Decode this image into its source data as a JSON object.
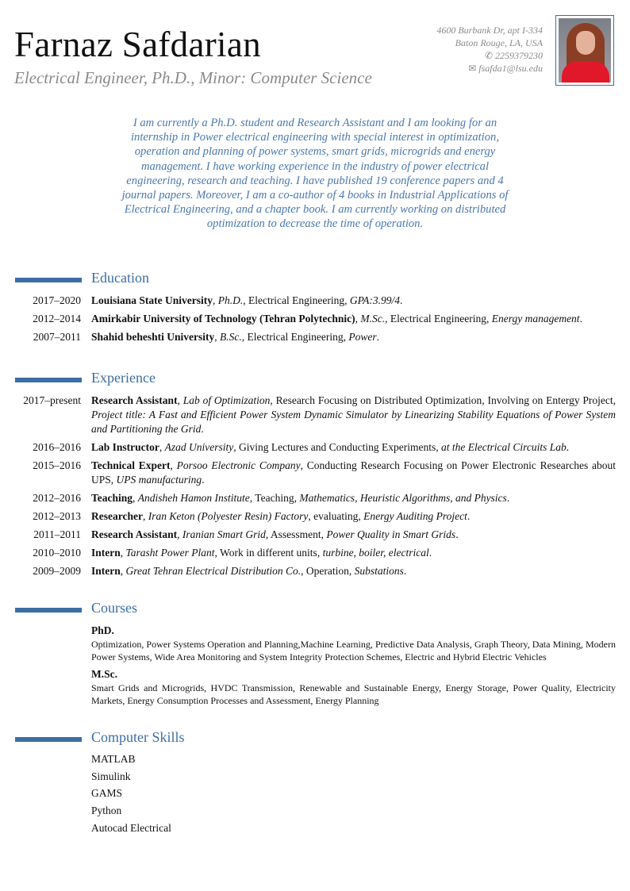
{
  "header": {
    "name": "Farnaz Safdarian",
    "title": "Electrical Engineer, Ph.D., Minor: Computer Science",
    "address_line1": "4600 Burbank Dr, apt I-334",
    "address_line2": "Baton Rouge, LA, USA",
    "phone": "2259379230",
    "email": "fsafda1@lsu.edu",
    "phone_icon": "mobile-phone-icon",
    "email_icon": "envelope-icon"
  },
  "quote": "I am currently a Ph.D. student and Research Assistant and I am looking for an internship in Power electrical engineering with special interest in optimization, operation and planning of power systems, smart grids, microgrids and energy management. I have working experience in the industry of power electrical engineering, research and teaching. I have published 19 conference papers and 4 journal papers. Moreover, I am a co-author of 4 books in Industrial Applications of Electrical Engineering, and a chapter book. I am currently working on distributed optimization to decrease the time of operation.",
  "colors": {
    "accent": "#3c6ea5",
    "quote": "#4a78b0",
    "muted": "#8a8a8a"
  },
  "education": {
    "heading": "Education",
    "entries": [
      {
        "date": "2017–2020",
        "title": "Louisiana State University",
        "org": "Ph.D.",
        "detail": "Electrical Engineering",
        "note": "GPA:3.99/4"
      },
      {
        "date": "2012–2014",
        "title": "Amirkabir University of Technology (Tehran Polytechnic)",
        "org": "M.Sc.",
        "detail": "Electrical Engineering",
        "note": "Energy management"
      },
      {
        "date": "2007–2011",
        "title": "Shahid beheshti University",
        "org": "B.Sc.",
        "detail": "Electrical Engineering",
        "note": "Power"
      }
    ]
  },
  "experience": {
    "heading": "Experience",
    "entries": [
      {
        "date": "2017–present",
        "title": "Research Assistant",
        "org": "Lab of Optimization",
        "detail": "Research Focusing on Distributed Optimization, Involving on Entergy Project",
        "note": "Project title: A Fast and Efficient Power System Dynamic Simulator by Linearizing Stability Equations of Power System and Partitioning the Grid"
      },
      {
        "date": "2016–2016",
        "title": "Lab Instructor",
        "org": "Azad University",
        "detail": "Giving Lectures and Conducting Experiments",
        "note": "at the Electrical Circuits Lab"
      },
      {
        "date": "2015–2016",
        "title": "Technical Expert",
        "org": "Porsoo Electronic Company",
        "detail": "Conducting Research Focusing on Power Electronic Researches about UPS",
        "note": "UPS manufacturing"
      },
      {
        "date": "2012–2016",
        "title": "Teaching",
        "org": "Andisheh Hamon Institute",
        "detail": "Teaching",
        "note": " Mathematics, Heuristic Algorithms, and Physics"
      },
      {
        "date": "2012–2013",
        "title": "Researcher",
        "org": "Iran Keton (Polyester Resin) Factory",
        "detail": "evaluating",
        "note": "Energy Auditing Project"
      },
      {
        "date": "2011–2011",
        "title": "Research Assistant",
        "org": "Iranian Smart Grid",
        "detail": "Assessment",
        "note": "Power Quality in Smart Grids"
      },
      {
        "date": "2010–2010",
        "title": "Intern",
        "org": "Tarasht Power Plant",
        "detail": "Work in different units",
        "note": "turbine, boiler, electrical"
      },
      {
        "date": "2009–2009",
        "title": "Intern",
        "org": "Great Tehran Electrical Distribution Co.",
        "detail": "Operation",
        "note": "Substations"
      }
    ]
  },
  "courses": {
    "heading": "Courses",
    "groups": [
      {
        "title": "PhD",
        "text": "Optimization, Power Systems Operation and Planning,Machine Learning, Predictive Data Analysis, Graph Theory, Data Mining, Modern Power Systems, Wide Area Monitoring and System Integrity Protection Schemes, Electric and Hybrid Electric Vehicles"
      },
      {
        "title": "M.Sc",
        "text": "Smart Grids and Microgrids, HVDC Transmission, Renewable and Sustainable Energy, Energy Storage, Power Quality, Electricity Markets, Energy Consumption Processes and Assessment, Energy Planning"
      }
    ]
  },
  "skills": {
    "heading": "Computer Skills",
    "items": [
      "MATLAB",
      "Simulink",
      "GAMS",
      "Python",
      "Autocad Electrical"
    ]
  }
}
